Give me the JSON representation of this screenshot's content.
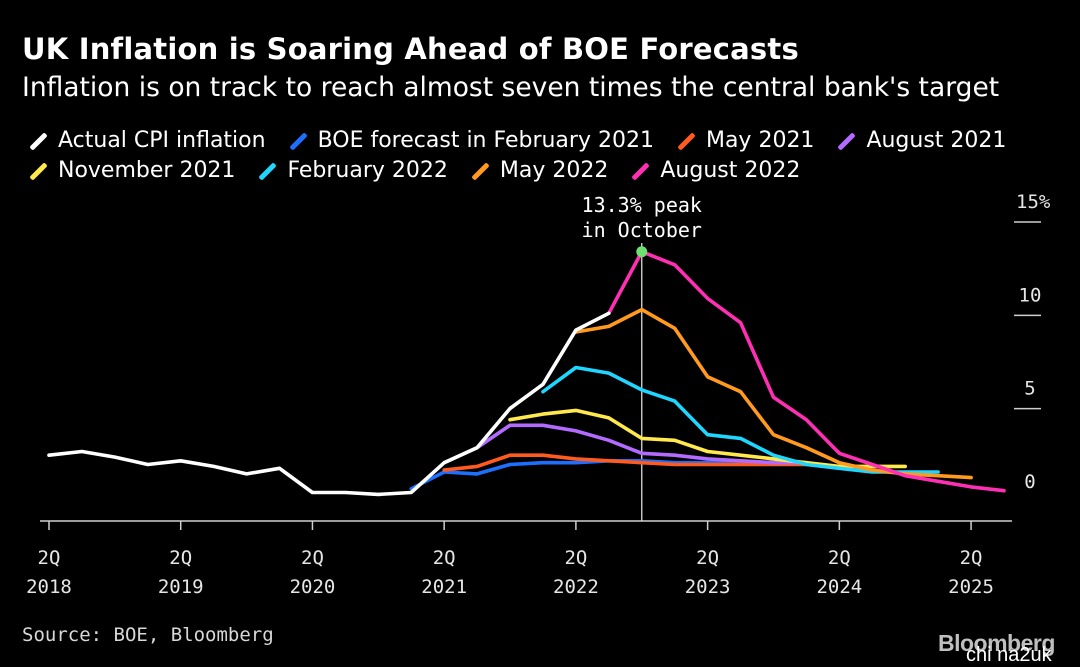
{
  "chart_data": {
    "type": "line",
    "title": "UK Inflation is Soaring Ahead of BOE Forecasts",
    "subtitle": "Inflation is on track to reach almost seven times the central bank's target",
    "x_ticks": [
      {
        "q": "2Q",
        "year": "2018"
      },
      {
        "q": "2Q",
        "year": "2019"
      },
      {
        "q": "2Q",
        "year": "2020"
      },
      {
        "q": "2Q",
        "year": "2021"
      },
      {
        "q": "2Q",
        "year": "2022"
      },
      {
        "q": "2Q",
        "year": "2023"
      },
      {
        "q": "2Q",
        "year": "2024"
      },
      {
        "q": "2Q",
        "year": "2025"
      }
    ],
    "y_ticks": [
      "15%",
      "10",
      "5",
      "0"
    ],
    "y_tick_values": [
      15,
      10,
      5,
      0
    ],
    "ylim": [
      -1,
      15
    ],
    "x_range": [
      "2018Q2",
      "2025Q3"
    ],
    "grid": false,
    "legend_position": "top",
    "annotation": {
      "line1": "13.3% peak",
      "line2": "in October",
      "x": "2022Q4",
      "y": 13.3,
      "marker_color": "#6fe06f"
    },
    "series": [
      {
        "name": "Actual CPI inflation",
        "color": "#ffffff",
        "x": [
          "2018Q2",
          "2018Q3",
          "2018Q4",
          "2019Q1",
          "2019Q2",
          "2019Q3",
          "2019Q4",
          "2020Q1",
          "2020Q2",
          "2020Q3",
          "2020Q4",
          "2021Q1",
          "2021Q2",
          "2021Q3",
          "2021Q4",
          "2022Q1",
          "2022Q2",
          "2022Q3"
        ],
        "values": [
          2.4,
          2.6,
          2.3,
          1.9,
          2.1,
          1.8,
          1.4,
          1.7,
          0.4,
          0.4,
          0.3,
          0.4,
          2.0,
          2.8,
          4.9,
          6.2,
          9.1,
          10.0
        ]
      },
      {
        "name": "BOE forecast in February 2021",
        "color": "#1f6fff",
        "x": [
          "2021Q1",
          "2021Q2",
          "2021Q3",
          "2021Q4",
          "2022Q1",
          "2022Q2",
          "2022Q3",
          "2022Q4",
          "2023Q1",
          "2023Q2",
          "2023Q3",
          "2023Q4",
          "2024Q1"
        ],
        "values": [
          0.6,
          1.5,
          1.4,
          1.9,
          2.0,
          2.0,
          2.1,
          2.1,
          2.0,
          2.0,
          2.0,
          2.0,
          2.0
        ]
      },
      {
        "name": "May 2021",
        "color": "#ff5a1f",
        "x": [
          "2021Q2",
          "2021Q3",
          "2021Q4",
          "2022Q1",
          "2022Q2",
          "2022Q3",
          "2022Q4",
          "2023Q1",
          "2023Q2",
          "2023Q3",
          "2023Q4",
          "2024Q1"
        ],
        "values": [
          1.6,
          1.8,
          2.4,
          2.4,
          2.2,
          2.1,
          2.0,
          1.9,
          1.9,
          1.9,
          1.9,
          1.9
        ]
      },
      {
        "name": "August 2021",
        "color": "#b36bff",
        "x": [
          "2021Q3",
          "2021Q4",
          "2022Q1",
          "2022Q2",
          "2022Q3",
          "2022Q4",
          "2023Q1",
          "2023Q2",
          "2023Q3",
          "2023Q4",
          "2024Q1"
        ],
        "values": [
          2.8,
          4.0,
          4.0,
          3.7,
          3.2,
          2.5,
          2.4,
          2.2,
          2.1,
          2.0,
          2.0
        ]
      },
      {
        "name": "November 2021",
        "color": "#ffe94d",
        "x": [
          "2021Q4",
          "2022Q1",
          "2022Q2",
          "2022Q3",
          "2022Q4",
          "2023Q1",
          "2023Q2",
          "2023Q3",
          "2023Q4",
          "2024Q1",
          "2024Q2",
          "2024Q3",
          "2024Q4"
        ],
        "values": [
          4.3,
          4.6,
          4.8,
          4.4,
          3.3,
          3.2,
          2.6,
          2.4,
          2.2,
          2.0,
          1.8,
          1.8,
          1.8
        ]
      },
      {
        "name": "February 2022",
        "color": "#1fd6ff",
        "x": [
          "2022Q1",
          "2022Q2",
          "2022Q3",
          "2022Q4",
          "2023Q1",
          "2023Q2",
          "2023Q3",
          "2023Q4",
          "2024Q1",
          "2024Q2",
          "2024Q3",
          "2024Q4",
          "2025Q1"
        ],
        "values": [
          5.8,
          7.1,
          6.8,
          5.9,
          5.3,
          3.5,
          3.3,
          2.4,
          1.9,
          1.7,
          1.5,
          1.5,
          1.5
        ]
      },
      {
        "name": "May 2022",
        "color": "#ff9a1f",
        "x": [
          "2022Q2",
          "2022Q3",
          "2022Q4",
          "2023Q1",
          "2023Q2",
          "2023Q3",
          "2023Q4",
          "2024Q1",
          "2024Q2",
          "2024Q3",
          "2024Q4",
          "2025Q1",
          "2025Q2"
        ],
        "values": [
          9.0,
          9.3,
          10.2,
          9.2,
          6.6,
          5.8,
          3.5,
          2.8,
          2.0,
          1.6,
          1.4,
          1.3,
          1.2
        ]
      },
      {
        "name": "August 2022",
        "color": "#ff2fb4",
        "x": [
          "2022Q3",
          "2022Q4",
          "2023Q1",
          "2023Q2",
          "2023Q3",
          "2023Q4",
          "2024Q1",
          "2024Q2",
          "2024Q3",
          "2024Q4",
          "2025Q1",
          "2025Q2",
          "2025Q3"
        ],
        "values": [
          10.0,
          13.3,
          12.6,
          10.8,
          9.5,
          5.5,
          4.3,
          2.5,
          1.9,
          1.3,
          1.0,
          0.7,
          0.5
        ]
      }
    ]
  },
  "source": "Source: BOE, Bloomberg",
  "logo_text": "Bloomberg",
  "watermark": "chi na2uk"
}
